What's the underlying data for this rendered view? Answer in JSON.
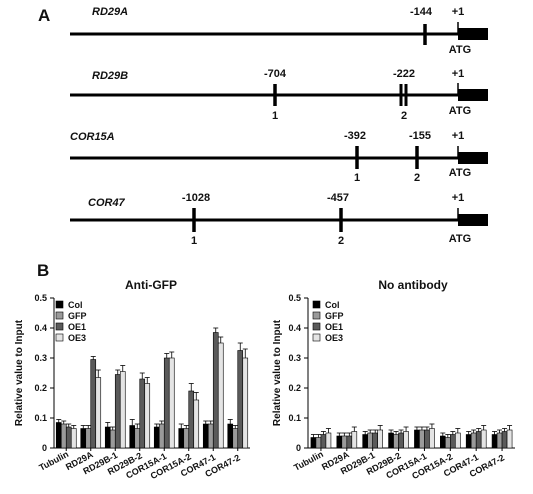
{
  "panel_a": {
    "label": "A",
    "promoters": [
      {
        "gene": "RD29A",
        "positions": [
          "-144"
        ],
        "site_labels": [],
        "plus_one": "+1",
        "atg": "ATG"
      },
      {
        "gene": "RD29B",
        "positions": [
          "-704",
          "-222"
        ],
        "site_labels": [
          "1",
          "2"
        ],
        "plus_one": "+1",
        "atg": "ATG"
      },
      {
        "gene": "COR15A",
        "positions": [
          "-392",
          "-155"
        ],
        "site_labels": [
          "1",
          "2"
        ],
        "plus_one": "+1",
        "atg": "ATG"
      },
      {
        "gene": "COR47",
        "positions": [
          "-1028",
          "-457"
        ],
        "site_labels": [
          "1",
          "2"
        ],
        "plus_one": "+1",
        "atg": "ATG"
      }
    ]
  },
  "panel_b": {
    "label": "B",
    "legend": {
      "entries": [
        "Col",
        "GFP",
        "OE1",
        "OE3"
      ],
      "colors": [
        "#000000",
        "#9a9a9a",
        "#5a5a5a",
        "#e4e4e4"
      ]
    }
  },
  "chart_data": [
    {
      "type": "bar",
      "title": "Anti-GFP",
      "ylabel": "Relative value to Input",
      "ylim": [
        0,
        0.5
      ],
      "yticks": [
        "0",
        "0.1",
        "0.2",
        "0.3",
        "0.4",
        "0.5"
      ],
      "categories": [
        "Tubulin",
        "RD29A",
        "RD29B-1",
        "RD29B-2",
        "COR15A-1",
        "COR15A-2",
        "COR47-1",
        "COR47-2"
      ],
      "series": [
        {
          "name": "Col",
          "values": [
            0.085,
            0.065,
            0.07,
            0.075,
            0.07,
            0.065,
            0.08,
            0.08
          ],
          "errors": [
            0.01,
            0.01,
            0.015,
            0.02,
            0.01,
            0.015,
            0.01,
            0.015
          ]
        },
        {
          "name": "GFP",
          "values": [
            0.08,
            0.065,
            0.06,
            0.065,
            0.08,
            0.065,
            0.08,
            0.065
          ],
          "errors": [
            0.01,
            0.01,
            0.01,
            0.015,
            0.01,
            0.01,
            0.01,
            0.01
          ]
        },
        {
          "name": "OE1",
          "values": [
            0.07,
            0.295,
            0.245,
            0.23,
            0.3,
            0.19,
            0.385,
            0.325
          ],
          "errors": [
            0.01,
            0.01,
            0.015,
            0.02,
            0.015,
            0.025,
            0.015,
            0.025
          ]
        },
        {
          "name": "OE3",
          "values": [
            0.065,
            0.235,
            0.255,
            0.215,
            0.3,
            0.16,
            0.35,
            0.3
          ],
          "errors": [
            0.01,
            0.025,
            0.02,
            0.02,
            0.02,
            0.025,
            0.02,
            0.03
          ]
        }
      ]
    },
    {
      "type": "bar",
      "title": "No antibody",
      "ylabel": "Relative value to Input",
      "ylim": [
        0,
        0.5
      ],
      "yticks": [
        "0",
        "0.1",
        "0.2",
        "0.3",
        "0.4",
        "0.5"
      ],
      "categories": [
        "Tubulin",
        "RD29A",
        "RD29B-1",
        "RD29B-2",
        "COR15A-1",
        "COR15A-2",
        "COR47-1",
        "COR47-2"
      ],
      "series": [
        {
          "name": "Col",
          "values": [
            0.035,
            0.04,
            0.045,
            0.05,
            0.06,
            0.04,
            0.045,
            0.045
          ],
          "errors": [
            0.01,
            0.01,
            0.01,
            0.01,
            0.01,
            0.01,
            0.01,
            0.01
          ]
        },
        {
          "name": "GFP",
          "values": [
            0.035,
            0.04,
            0.05,
            0.045,
            0.06,
            0.035,
            0.05,
            0.05
          ],
          "errors": [
            0.01,
            0.01,
            0.01,
            0.01,
            0.01,
            0.01,
            0.01,
            0.01
          ]
        },
        {
          "name": "OE1",
          "values": [
            0.045,
            0.04,
            0.05,
            0.05,
            0.06,
            0.045,
            0.055,
            0.055
          ],
          "errors": [
            0.01,
            0.01,
            0.01,
            0.01,
            0.01,
            0.01,
            0.01,
            0.01
          ]
        },
        {
          "name": "OE3",
          "values": [
            0.05,
            0.055,
            0.06,
            0.055,
            0.065,
            0.05,
            0.06,
            0.06
          ],
          "errors": [
            0.015,
            0.015,
            0.015,
            0.015,
            0.015,
            0.015,
            0.015,
            0.015
          ]
        }
      ]
    }
  ]
}
